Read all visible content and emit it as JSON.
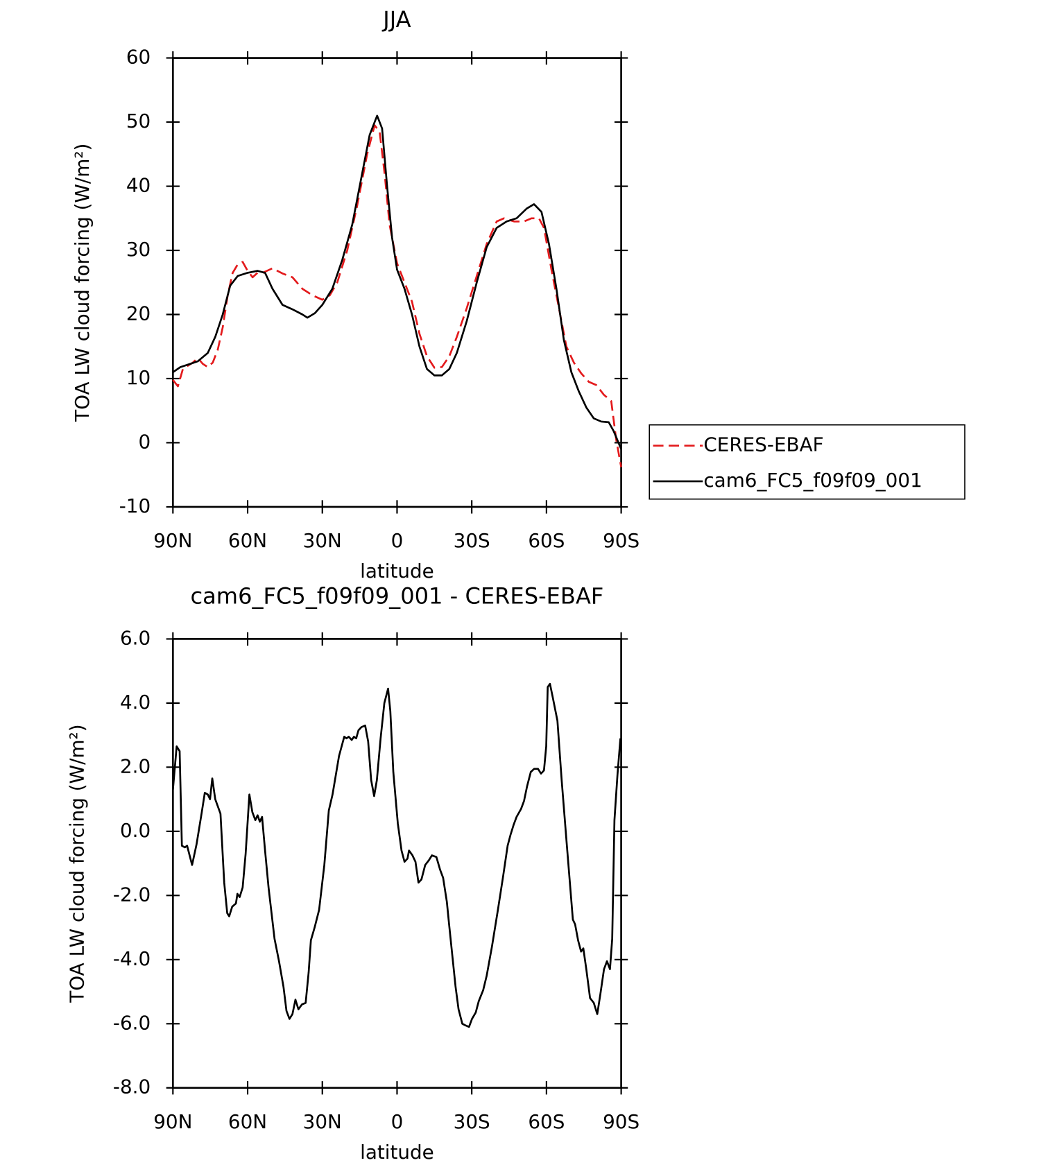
{
  "chart_data": [
    {
      "type": "line",
      "title": "JJA",
      "xlabel": "latitude",
      "ylabel": "TOA LW cloud forcing (W/m²)",
      "xlim": [
        90,
        -90
      ],
      "ylim": [
        -10,
        60
      ],
      "xticks": [
        {
          "value": 90,
          "label": "90N"
        },
        {
          "value": 60,
          "label": "60N"
        },
        {
          "value": 30,
          "label": "30N"
        },
        0,
        {
          "value": -30,
          "label": "30S"
        },
        {
          "value": -60,
          "label": "60S"
        },
        {
          "value": -90,
          "label": "90S"
        }
      ],
      "yticks": [
        -10,
        0,
        10,
        20,
        30,
        40,
        50,
        60
      ],
      "legend": "outside right",
      "series": [
        {
          "name": "CERES-EBAF",
          "color": "#e31a1c",
          "dash": "dashed",
          "x": [
            90,
            88,
            86,
            82,
            80,
            78,
            76,
            74,
            72,
            70,
            68,
            66,
            64,
            62,
            60,
            58,
            56,
            54,
            50,
            46,
            42,
            38,
            34,
            30,
            27,
            24,
            20,
            16,
            12,
            9,
            7,
            5,
            3,
            0,
            -3,
            -6,
            -9,
            -12,
            -15,
            -18,
            -21,
            -24,
            -28,
            -32,
            -36,
            -40,
            -43,
            -47,
            -51,
            -54,
            -57,
            -59,
            -62,
            -65,
            -68,
            -71,
            -74,
            -77,
            -80,
            -83,
            -86,
            -88,
            -90
          ],
          "values": [
            9.8,
            8.8,
            11.5,
            12.5,
            13.2,
            12.3,
            11.8,
            12.5,
            14.5,
            18,
            23,
            26.5,
            27.8,
            28.2,
            26.8,
            25.8,
            26.5,
            26.5,
            27.2,
            26.4,
            25.8,
            24,
            23,
            22.3,
            23,
            25,
            30,
            37,
            45,
            49.5,
            48.5,
            42,
            34,
            28,
            25,
            22,
            17,
            13.5,
            11.7,
            11.8,
            13.5,
            16.5,
            21,
            26,
            31,
            34.5,
            35,
            34.5,
            34.5,
            35,
            35,
            33.5,
            27,
            21,
            15,
            12.5,
            10.8,
            9.5,
            9,
            7.5,
            6.5,
            0.5,
            -3.8
          ]
        },
        {
          "name": "cam6_FC5_f09f09_001",
          "color": "#000000",
          "dash": "solid",
          "x": [
            90,
            87,
            83,
            80,
            76,
            73,
            70,
            67,
            64,
            60,
            56,
            53,
            50,
            46,
            42,
            38,
            36,
            33,
            30,
            26,
            22,
            18,
            14,
            11,
            8,
            6,
            4,
            2,
            0,
            -3,
            -6,
            -9,
            -12,
            -15,
            -18,
            -21,
            -24,
            -28,
            -32,
            -36,
            -40,
            -44,
            -48,
            -52,
            -55,
            -58,
            -61,
            -64,
            -67,
            -70,
            -73,
            -76,
            -79,
            -82,
            -85,
            -87,
            -90
          ],
          "values": [
            11,
            11.8,
            12.3,
            12.7,
            14,
            16.5,
            20,
            24.5,
            26,
            26.5,
            26.8,
            26.5,
            24,
            21.5,
            20.8,
            20,
            19.5,
            20.2,
            21.5,
            24,
            28.5,
            34,
            42,
            48,
            51,
            49,
            40,
            32,
            27,
            24,
            20,
            15,
            11.5,
            10.5,
            10.5,
            11.5,
            14,
            19,
            25,
            30.5,
            33.5,
            34.5,
            35,
            36.5,
            37.2,
            36,
            31,
            24,
            16,
            11,
            8,
            5.5,
            3.8,
            3.3,
            3.2,
            1.8,
            -1
          ]
        }
      ]
    },
    {
      "type": "line",
      "title": "cam6_FC5_f09f09_001 - CERES-EBAF",
      "xlabel": "latitude",
      "ylabel": "TOA LW cloud forcing (W/m²)",
      "xlim": [
        90,
        -90
      ],
      "ylim": [
        -8,
        6
      ],
      "xticks": [
        {
          "value": 90,
          "label": "90N"
        },
        {
          "value": 60,
          "label": "60N"
        },
        {
          "value": 30,
          "label": "30N"
        },
        0,
        {
          "value": -30,
          "label": "30S"
        },
        {
          "value": -60,
          "label": "60S"
        },
        {
          "value": -90,
          "label": "90S"
        }
      ],
      "yticks": [
        {
          "value": -8,
          "label": "-8.0"
        },
        {
          "value": -6,
          "label": "-6.0"
        },
        {
          "value": -4,
          "label": "-4.0"
        },
        {
          "value": -2,
          "label": "-2.0"
        },
        {
          "value": 0,
          "label": "0.0"
        },
        {
          "value": 2,
          "label": "2.0"
        },
        {
          "value": 4,
          "label": "4.0"
        },
        {
          "value": 6,
          "label": "6.0"
        }
      ],
      "series": [
        {
          "color": "#000000",
          "dash": "solid",
          "x": [
            90,
            88.5,
            87.3,
            86.4,
            85.2,
            84.3,
            82.3,
            80.5,
            78.4,
            77.2,
            76,
            75.1,
            74.2,
            73,
            70.9,
            69.4,
            68.2,
            67.4,
            66.2,
            64.7,
            64.1,
            63.2,
            62,
            60.8,
            59.3,
            58.1,
            56.9,
            56,
            55.1,
            54.2,
            53,
            51.6,
            49.2,
            47.4,
            45.6,
            44.4,
            43.2,
            42,
            40.8,
            39.6,
            38.2,
            36.7,
            35.5,
            34.6,
            33.1,
            31.3,
            29.2,
            27.4,
            25.9,
            23.3,
            21.2,
            20.3,
            19.4,
            18.2,
            17.3,
            16.4,
            15.5,
            14.3,
            12.8,
            11.6,
            10.4,
            9.2,
            8.1,
            6.6,
            5.1,
            3.6,
            2.7,
            1.5,
            -0.3,
            -1.8,
            -3,
            -4.2,
            -4.8,
            -6.2,
            -7.4,
            -8.6,
            -9.8,
            -11.3,
            -12.8,
            -14,
            -15.8,
            -17.3,
            -18.5,
            -20,
            -20.9,
            -22.3,
            -23.5,
            -24.7,
            -26.2,
            -27.4,
            -28.9,
            -30.1,
            -31.6,
            -32.8,
            -34.6,
            -36,
            -38.1,
            -40.5,
            -42.6,
            -44.4,
            -45.6,
            -46.8,
            -48,
            -49.8,
            -51,
            -52.2,
            -53.7,
            -55.1,
            -56.6,
            -57.8,
            -59,
            -59.9,
            -60.5,
            -61.4,
            -62.6,
            -64.4,
            -66.1,
            -68.2,
            -70.6,
            -71.5,
            -72.7,
            -73.9,
            -74.8,
            -76,
            -77.5,
            -79,
            -80.4,
            -81.6,
            -83.1,
            -84.3,
            -85.5,
            -86.4,
            -87.3,
            -88.5,
            -89.7
          ],
          "values": [
            1.3,
            2.65,
            2.5,
            -0.45,
            -0.5,
            -0.45,
            -1.05,
            -0.4,
            0.6,
            1.2,
            1.15,
            1,
            1.65,
            1,
            0.55,
            -1.6,
            -2.55,
            -2.65,
            -2.35,
            -2.25,
            -1.95,
            -2.05,
            -1.75,
            -0.7,
            1.15,
            0.6,
            0.35,
            0.5,
            0.3,
            0.45,
            -0.6,
            -1.75,
            -3.35,
            -4.05,
            -4.85,
            -5.6,
            -5.85,
            -5.7,
            -5.25,
            -5.55,
            -5.4,
            -5.35,
            -4.4,
            -3.4,
            -3,
            -2.45,
            -1.05,
            0.65,
            1.15,
            2.35,
            2.95,
            2.9,
            2.95,
            2.85,
            2.95,
            2.9,
            3.15,
            3.25,
            3.3,
            2.8,
            1.6,
            1.1,
            1.6,
            2.9,
            4,
            4.45,
            3.75,
            1.85,
            0.25,
            -0.6,
            -0.95,
            -0.85,
            -0.6,
            -0.75,
            -0.95,
            -1.6,
            -1.5,
            -1.05,
            -0.9,
            -0.75,
            -0.8,
            -1.2,
            -1.45,
            -2.2,
            -2.9,
            -3.95,
            -4.85,
            -5.55,
            -6,
            -6.05,
            -6.1,
            -5.85,
            -5.65,
            -5.3,
            -4.95,
            -4.5,
            -3.6,
            -2.45,
            -1.4,
            -0.45,
            -0.1,
            0.2,
            0.45,
            0.7,
            0.95,
            1.4,
            1.85,
            1.95,
            1.95,
            1.8,
            1.9,
            2.65,
            4.5,
            4.6,
            4.15,
            3.45,
            1.6,
            -0.45,
            -2.75,
            -2.9,
            -3.4,
            -3.75,
            -3.65,
            -4.3,
            -5.2,
            -5.35,
            -5.7,
            -5.1,
            -4.3,
            -4.05,
            -4.3,
            -3.35,
            0.35,
            1.75,
            2.9
          ]
        }
      ]
    }
  ]
}
